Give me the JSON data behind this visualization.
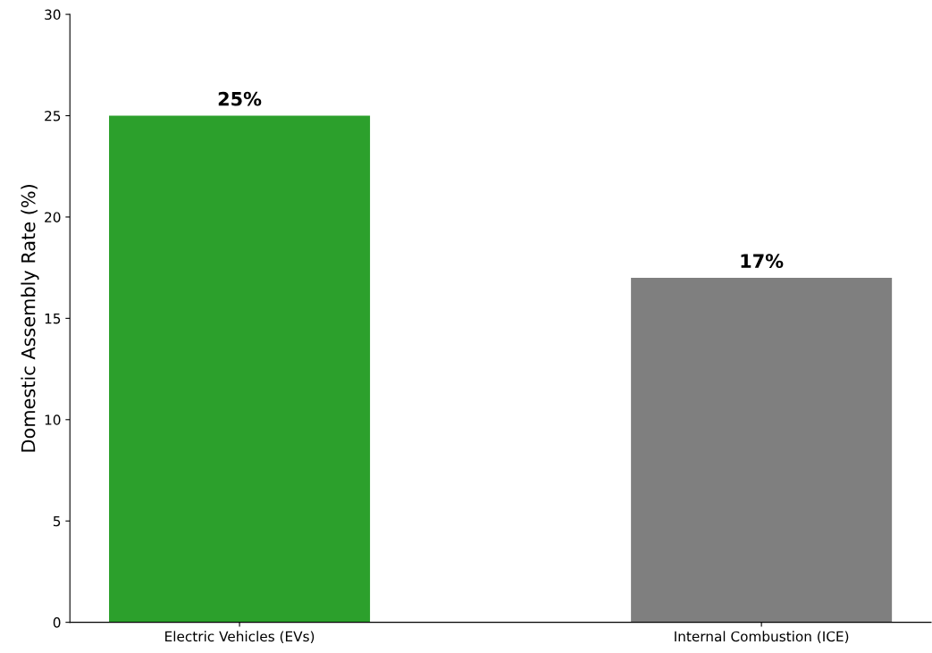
{
  "chart_data": {
    "type": "bar",
    "categories": [
      "Electric Vehicles (EVs)",
      "Internal Combustion (ICE)"
    ],
    "values": [
      25,
      17
    ],
    "colors": [
      "#2ca02c",
      "#7f7f7f"
    ],
    "value_labels": [
      "25%",
      "17%"
    ],
    "ylabel": "Domestic Assembly Rate (%)",
    "ylim": [
      0,
      30
    ],
    "yticks": [
      0,
      5,
      10,
      15,
      20,
      25,
      30
    ],
    "grid": false
  }
}
